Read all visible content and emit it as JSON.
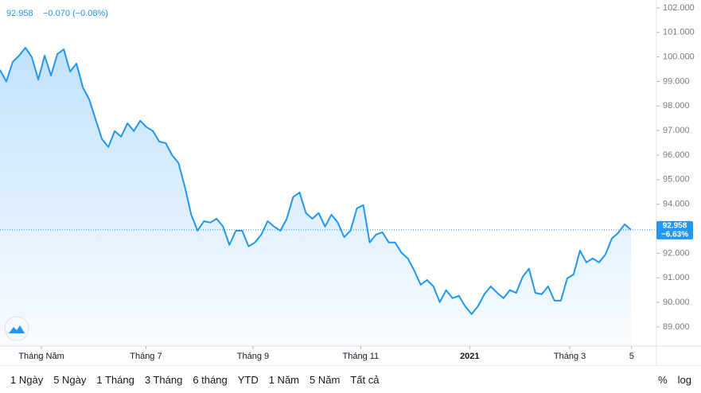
{
  "chart_data": {
    "type": "area",
    "header_price": "92.958",
    "header_change": "−0.070 (−0.08%)",
    "change_pct_label": "−6.63%",
    "color": "#2196f3",
    "x": [
      0,
      1,
      2,
      3,
      4,
      5,
      6,
      7,
      8,
      9,
      10,
      11,
      12,
      13,
      14,
      15,
      16,
      17,
      18,
      19,
      20,
      21,
      22,
      23,
      24,
      25,
      26,
      27,
      28,
      29,
      30,
      31,
      32,
      33,
      34,
      35,
      36,
      37,
      38,
      39,
      40,
      41,
      42,
      43,
      44,
      45,
      46,
      47,
      48,
      49,
      50,
      51,
      52,
      53,
      54,
      55,
      56,
      57,
      58,
      59,
      60,
      61,
      62,
      63,
      64,
      65,
      66,
      67,
      68,
      69,
      70,
      71,
      72,
      73,
      74,
      75,
      76,
      77,
      78,
      79,
      80,
      81,
      82,
      83,
      84,
      85,
      86,
      87,
      88,
      89,
      90,
      91,
      92,
      93,
      94,
      95,
      96,
      97,
      98,
      99
    ],
    "values": [
      99.47,
      99.0,
      99.8,
      100.05,
      100.38,
      99.99,
      99.08,
      100.05,
      99.24,
      100.12,
      100.31,
      99.4,
      99.73,
      98.76,
      98.27,
      97.46,
      96.65,
      96.33,
      96.98,
      96.75,
      97.3,
      96.98,
      97.4,
      97.14,
      96.98,
      96.55,
      96.49,
      96.0,
      95.68,
      94.71,
      93.57,
      92.92,
      93.31,
      93.25,
      93.41,
      93.09,
      92.34,
      92.92,
      92.92,
      92.28,
      92.44,
      92.76,
      93.31,
      93.09,
      92.92,
      93.41,
      94.29,
      94.48,
      93.64,
      93.41,
      93.64,
      93.09,
      93.57,
      93.25,
      92.66,
      92.92,
      93.83,
      93.96,
      92.44,
      92.76,
      92.86,
      92.44,
      92.44,
      92.02,
      91.79,
      91.3,
      90.72,
      90.91,
      90.65,
      90.01,
      90.5,
      90.17,
      90.27,
      89.84,
      89.52,
      89.84,
      90.33,
      90.65,
      90.39,
      90.17,
      90.5,
      90.39,
      91.04,
      91.37,
      90.39,
      90.33,
      90.65,
      90.07,
      90.07,
      90.98,
      91.14,
      92.11,
      91.63,
      91.79,
      91.63,
      91.95,
      92.6,
      92.83,
      93.18,
      92.958
    ],
    "xlim": [
      0,
      103
    ],
    "xticks": [
      {
        "value": 6.5,
        "label": "Tháng Năm"
      },
      {
        "value": 22.9,
        "label": "Tháng 7"
      },
      {
        "value": 39.7,
        "label": "Tháng 9"
      },
      {
        "value": 56.6,
        "label": "Tháng 11"
      },
      {
        "value": 73.7,
        "label": "2021"
      },
      {
        "value": 89.4,
        "label": "Tháng 3"
      },
      {
        "value": 99.1,
        "label": "5"
      }
    ],
    "ylim": [
      88.22,
      102.32
    ],
    "yticks": [
      {
        "value": 89,
        "label": "89.000"
      },
      {
        "value": 90,
        "label": "90.000"
      },
      {
        "value": 91,
        "label": "91.000"
      },
      {
        "value": 92,
        "label": "92.000"
      },
      {
        "value": 93,
        "label": "93.000"
      },
      {
        "value": 94,
        "label": "94.000"
      },
      {
        "value": 95,
        "label": "95.000"
      },
      {
        "value": 96,
        "label": "96.000"
      },
      {
        "value": 97,
        "label": "97.000"
      },
      {
        "value": 98,
        "label": "98.000"
      },
      {
        "value": 99,
        "label": "99.000"
      },
      {
        "value": 100,
        "label": "100.000"
      },
      {
        "value": 101,
        "label": "101.000"
      },
      {
        "value": 102,
        "label": "102.000"
      }
    ]
  },
  "toolbar": {
    "ranges": [
      "1 Ngày",
      "5 Ngày",
      "1 Tháng",
      "3 Tháng",
      "6 tháng",
      "YTD",
      "1 Năm",
      "5 Năm",
      "Tất cả"
    ],
    "percent": "%",
    "log": "log"
  }
}
